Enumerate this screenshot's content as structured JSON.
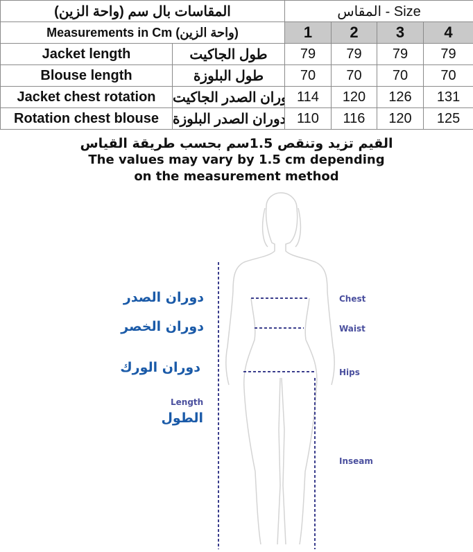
{
  "table": {
    "title_ar": "المقاسات بال سم (واحة الزين)",
    "size_header": "المقاس - Size",
    "subtitle": "Measurements in Cm (واحة الزين)",
    "sizes": [
      "1",
      "2",
      "3",
      "4"
    ],
    "rows": [
      {
        "en": "Jacket length",
        "ar": "طول الجاكيت",
        "values": [
          "79",
          "79",
          "79",
          "79"
        ]
      },
      {
        "en": "Blouse length",
        "ar": "طول البلوزة",
        "values": [
          "70",
          "70",
          "70",
          "70"
        ]
      },
      {
        "en": "Jacket chest rotation",
        "ar": "دوران الصدر الجاكيت",
        "values": [
          "114",
          "120",
          "126",
          "131"
        ]
      },
      {
        "en": "Rotation chest blouse",
        "ar": "دوران الصدر البلوزة",
        "values": [
          "110",
          "116",
          "120",
          "125"
        ]
      }
    ]
  },
  "note": {
    "ar": "القيم تزيد وتنقص 1.5سم بحسب طريقة القياس",
    "en_line1": "The values may vary by 1.5 cm depending",
    "en_line2": "on the measurement method"
  },
  "figure": {
    "labels_ar": {
      "chest": "دوران الصدر",
      "waist": "دوران الخصر",
      "hips": "دوران الورك",
      "length": "الطول"
    },
    "labels_en": {
      "length": "Length",
      "chest": "Chest",
      "waist": "Waist",
      "hips": "Hips",
      "inseam": "Inseam"
    },
    "colors": {
      "arabic_label": "#1a5aa8",
      "english_label": "#4a4f9e",
      "dashed_line": "#3a3d8c",
      "silhouette": "#d4d4d4"
    }
  }
}
